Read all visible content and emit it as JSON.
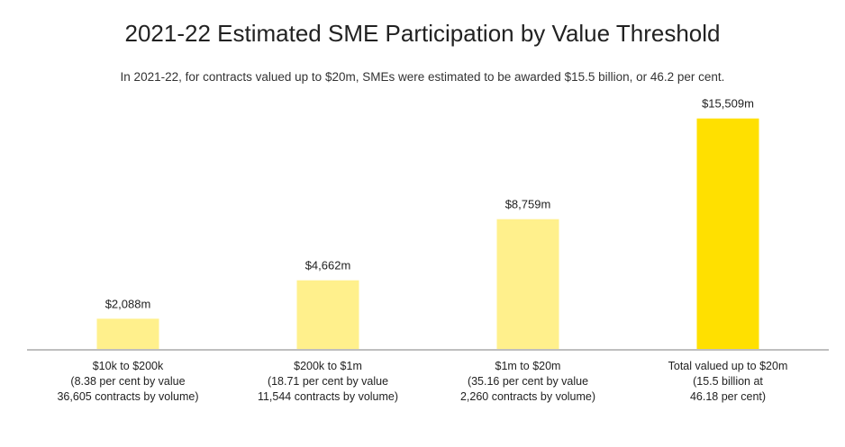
{
  "chart_data": {
    "type": "bar",
    "title": "2021-22 Estimated SME Participation by Value Threshold",
    "subtitle": "In 2021-22, for contracts valued up to $20m, SMEs were estimated to be awarded $15.5 billion, or 46.2 per cent.",
    "xlabel": "",
    "ylabel": "",
    "ylim": [
      0,
      17000
    ],
    "grid": false,
    "legend": "none",
    "categories": [
      [
        "$10k to $200k",
        "(8.38 per cent by value",
        "36,605 contracts by volume)"
      ],
      [
        "$200k to $1m",
        "(18.71 per cent by value",
        "11,544 contracts by volume)"
      ],
      [
        "$1m to $20m",
        "(35.16 per cent by value",
        "2,260 contracts by volume)"
      ],
      [
        "Total valued up to $20m",
        "(15.5 billion at",
        "46.18 per cent)"
      ]
    ],
    "values": [
      2088,
      4662,
      8759,
      15509
    ],
    "value_labels": [
      "$2,088m",
      "$4,662m",
      "$8,759m",
      "$15,509m"
    ],
    "colors": [
      "#FFF08C",
      "#FFF08C",
      "#FFF08C",
      "#FFE000"
    ],
    "axis_color": "#BFBFBF"
  }
}
